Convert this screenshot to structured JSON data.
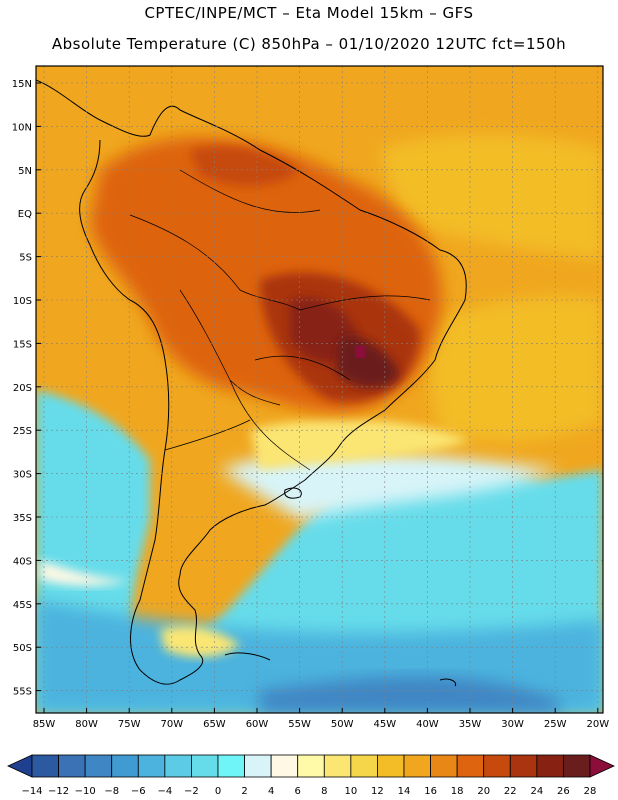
{
  "header": {
    "line1": "CPTEC/INPE/MCT –  Eta Model 15km – GFS",
    "line2": "Absolute Temperature (C) 850hPa – 01/10/2020 12UTC fct=150h"
  },
  "axes": {
    "lat_labels": [
      "15N",
      "10N",
      "5N",
      "EQ",
      "5S",
      "10S",
      "15S",
      "20S",
      "25S",
      "30S",
      "35S",
      "40S",
      "45S",
      "50S",
      "55S"
    ],
    "lon_labels": [
      "85W",
      "80W",
      "75W",
      "70W",
      "65W",
      "60W",
      "55W",
      "50W",
      "45W",
      "40W",
      "35W",
      "30W",
      "25W",
      "20W"
    ],
    "lat_range": [
      17,
      -58
    ],
    "lon_range": [
      -85,
      -20
    ]
  },
  "colorbar": {
    "ticks": [
      "-14",
      "-12",
      "-10",
      "-8",
      "-6",
      "-4",
      "-2",
      "0",
      "2",
      "4",
      "6",
      "8",
      "10",
      "12",
      "14",
      "16",
      "18",
      "20",
      "22",
      "24",
      "26",
      "28"
    ],
    "colors": [
      "#1f3f8f",
      "#2c5aa0",
      "#3a72b5",
      "#3f86c4",
      "#3f9bd2",
      "#4cb3de",
      "#5ccbe6",
      "#66dcea",
      "#6ff5f7",
      "#d8f4f8",
      "#fff8e4",
      "#fffaa8",
      "#fbe673",
      "#f5d54a",
      "#f3bd28",
      "#f0a71f",
      "#e88716",
      "#de6410",
      "#c64a0e",
      "#aa3410",
      "#872212",
      "#6a1d1d",
      "#8b0d3a"
    ]
  },
  "legend_colors": {
    "land_outline": "#000000",
    "grid": "#808080"
  }
}
